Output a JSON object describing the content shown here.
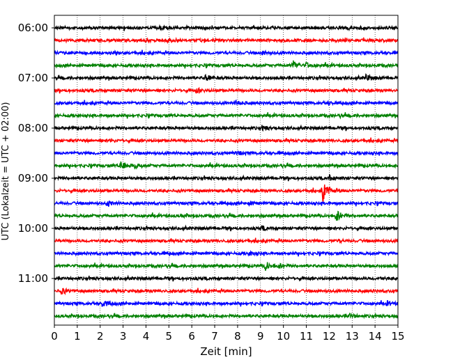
{
  "chart_data": {
    "type": "line",
    "title": "",
    "xlabel": "Zeit  [min]",
    "ylabel": "UTC (Lokalzeit = UTC + 02:00)",
    "xlim": [
      0,
      15
    ],
    "x_ticks": [
      0,
      1,
      2,
      3,
      4,
      5,
      6,
      7,
      8,
      9,
      10,
      11,
      12,
      13,
      14,
      15
    ],
    "x_tick_labels": [
      "0",
      "1",
      "2",
      "3",
      "4",
      "5",
      "6",
      "7",
      "8",
      "9",
      "10",
      "11",
      "12",
      "13",
      "14",
      "15"
    ],
    "vertical_grid": "dotted",
    "trace_duration_min": 15,
    "y_tick_labels": [
      "06:00",
      "07:00",
      "08:00",
      "09:00",
      "10:00",
      "11:00"
    ],
    "color_cycle": [
      "#000000",
      "#ff0000",
      "#0000ff",
      "#008000"
    ],
    "traces": [
      {
        "start": "06:00",
        "events": [
          {
            "t": 4.6,
            "amp": 0.25
          }
        ]
      },
      {
        "start": "06:15",
        "events": [
          {
            "t": 4.9,
            "amp": 0.25
          }
        ]
      },
      {
        "start": "06:30",
        "events": [
          {
            "t": 9.1,
            "amp": 0.3
          }
        ]
      },
      {
        "start": "06:45",
        "events": [
          {
            "t": 10.4,
            "amp": 0.85
          },
          {
            "t": 11.0,
            "amp": 0.35
          }
        ]
      },
      {
        "start": "07:00",
        "events": [
          {
            "t": 6.6,
            "amp": 0.55
          },
          {
            "t": 13.6,
            "amp": 0.6
          }
        ]
      },
      {
        "start": "07:15",
        "events": [
          {
            "t": 6.2,
            "amp": 0.35
          }
        ]
      },
      {
        "start": "07:30",
        "events": [
          {
            "t": 7.9,
            "amp": 0.4
          },
          {
            "t": 11.9,
            "amp": 0.2
          }
        ]
      },
      {
        "start": "07:45",
        "events": [
          {
            "t": 12.5,
            "amp": 0.2
          }
        ]
      },
      {
        "start": "08:00",
        "events": [
          {
            "t": 9.1,
            "amp": 0.25
          }
        ]
      },
      {
        "start": "08:15",
        "events": [
          {
            "t": 2.4,
            "amp": 0.2
          }
        ]
      },
      {
        "start": "08:30",
        "events": [
          {
            "t": 7.9,
            "amp": 0.35
          }
        ]
      },
      {
        "start": "08:45",
        "events": [
          {
            "t": 2.9,
            "amp": 0.9
          },
          {
            "t": 3.5,
            "amp": 0.35
          }
        ]
      },
      {
        "start": "09:00",
        "events": [
          {
            "t": 12.0,
            "amp": 0.45
          }
        ]
      },
      {
        "start": "09:15",
        "events": [
          {
            "t": 11.7,
            "amp": 2.2
          }
        ]
      },
      {
        "start": "09:30",
        "events": [
          {
            "t": 2.3,
            "amp": 0.55
          },
          {
            "t": 8.5,
            "amp": 0.3
          }
        ]
      },
      {
        "start": "09:45",
        "events": [
          {
            "t": 12.3,
            "amp": 1.1
          },
          {
            "t": 5.5,
            "amp": 0.2
          }
        ]
      },
      {
        "start": "10:00",
        "events": [
          {
            "t": 9.0,
            "amp": 0.4
          }
        ]
      },
      {
        "start": "10:15",
        "events": [
          {
            "t": 12.4,
            "amp": 0.2
          }
        ]
      },
      {
        "start": "10:30",
        "events": [
          {
            "t": 8.5,
            "amp": 0.35
          }
        ]
      },
      {
        "start": "10:45",
        "events": [
          {
            "t": 9.2,
            "amp": 0.8
          },
          {
            "t": 9.8,
            "amp": 0.35
          }
        ]
      },
      {
        "start": "11:00",
        "events": [
          {
            "t": 14.2,
            "amp": 0.15
          }
        ]
      },
      {
        "start": "11:15",
        "events": [
          {
            "t": 0.3,
            "amp": 0.5
          }
        ]
      },
      {
        "start": "11:30",
        "events": [
          {
            "t": 2.1,
            "amp": 0.6
          },
          {
            "t": 14.5,
            "amp": 0.3
          }
        ]
      },
      {
        "start": "11:45",
        "events": [
          {
            "t": 12.9,
            "amp": 0.3
          }
        ]
      }
    ]
  }
}
